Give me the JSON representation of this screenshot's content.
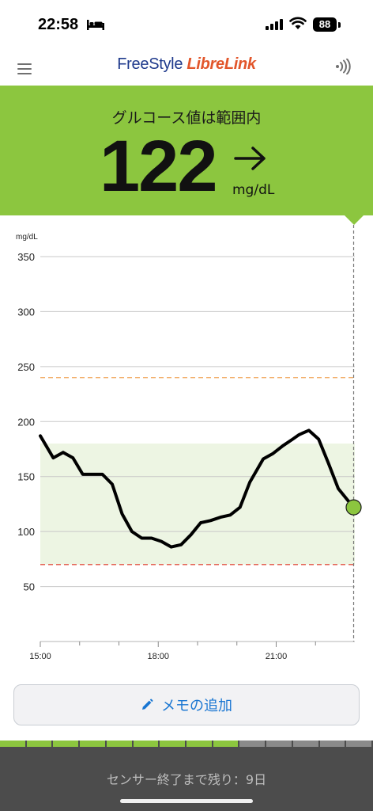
{
  "status_bar": {
    "time": "22:58",
    "battery": "88"
  },
  "header": {
    "logo_freestyle": "FreeStyle",
    "logo_librelink": "LibreLink"
  },
  "glucose": {
    "status": "グルコース値は範囲内",
    "value": "122",
    "unit": "mg/dL",
    "trend": "steady"
  },
  "colors": {
    "in_range": "#8cc63f",
    "high_threshold": "#f0a050",
    "low_threshold": "#e05040",
    "link": "#1976d2"
  },
  "chart_data": {
    "type": "line",
    "y_unit": "mg/dL",
    "ylim": [
      0,
      350
    ],
    "yticks": [
      50,
      100,
      150,
      200,
      250,
      300,
      350
    ],
    "xticks": [
      "15:00",
      "18:00",
      "21:00"
    ],
    "x_range_hours": [
      15.0,
      23.0
    ],
    "target_range": [
      70,
      180
    ],
    "high_line": 240,
    "low_line": 70,
    "series": [
      {
        "x": [
          15.0,
          15.33,
          15.58,
          15.83,
          16.08,
          16.58,
          16.83,
          17.08,
          17.33,
          17.58,
          17.83,
          18.08,
          18.33,
          18.58,
          18.83,
          19.08,
          19.33,
          19.58,
          19.83,
          20.08,
          20.33,
          20.67,
          20.92,
          21.17,
          21.42,
          21.58,
          21.83,
          22.08,
          22.33,
          22.58,
          22.83,
          22.97
        ],
        "y": [
          187,
          167,
          172,
          167,
          152,
          152,
          143,
          116,
          100,
          94,
          94,
          91,
          86,
          88,
          97,
          108,
          110,
          113,
          115,
          122,
          145,
          166,
          171,
          178,
          184,
          188,
          192,
          184,
          162,
          139,
          128,
          122
        ]
      }
    ],
    "current": {
      "x": 22.97,
      "y": 122
    }
  },
  "actions": {
    "add_memo": "メモの追加"
  },
  "sensor": {
    "remaining_text": "センサー終了まで残り：9日",
    "segments_total": 14,
    "segments_used": 9
  }
}
